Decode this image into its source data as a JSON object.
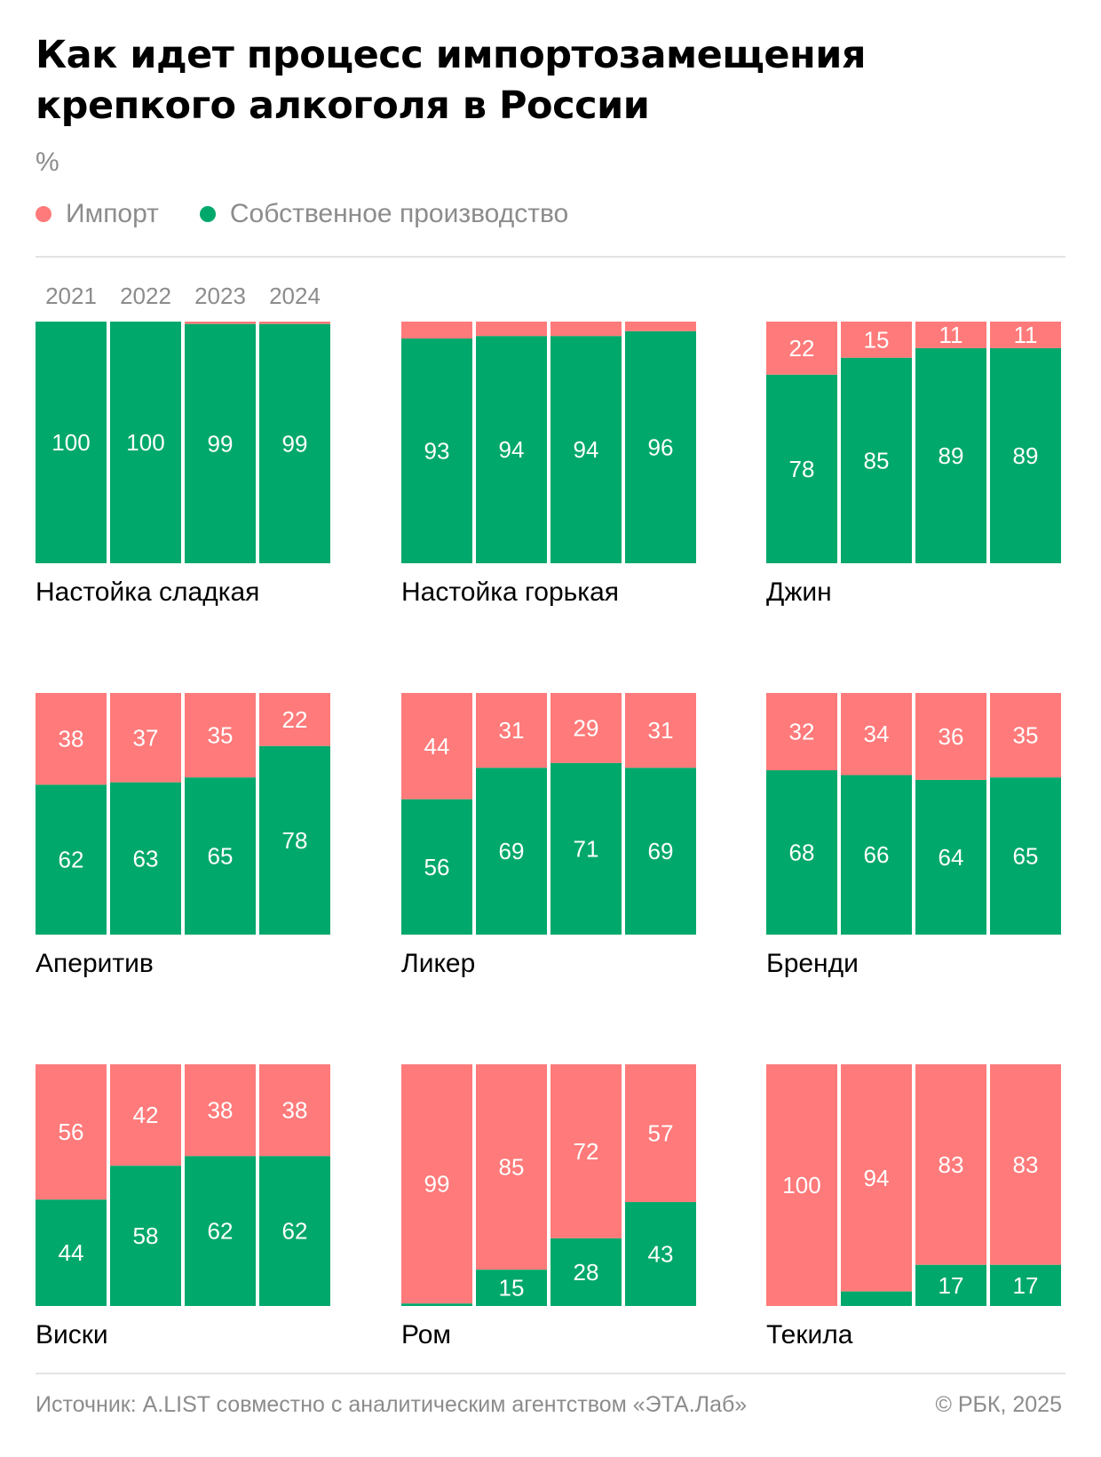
{
  "title": "Как идет процесс импортозамещения крепкого алкоголя в России",
  "unit": "%",
  "legend": [
    {
      "label": "Импорт",
      "color": "#ff7a7a"
    },
    {
      "label": "Собственное производство",
      "color": "#00a86b"
    }
  ],
  "years": [
    "2021",
    "2022",
    "2023",
    "2024"
  ],
  "source": "Источник: A.LIST совместно с аналитическим агентством «ЭТА.Лаб»",
  "copyright": "© РБК, 2025",
  "chart_data": {
    "type": "bar",
    "stacked": true,
    "normalized_percent": true,
    "categories": [
      "2021",
      "2022",
      "2023",
      "2024"
    ],
    "colors": {
      "import": "#ff7a7a",
      "own": "#00a86b"
    },
    "panels": [
      {
        "name": "Настойка сладкая",
        "import": [
          0,
          0,
          1,
          1
        ],
        "own": [
          100,
          100,
          99,
          99
        ],
        "import_labels": [
          "",
          "",
          "",
          ""
        ],
        "own_labels": [
          "100",
          "100",
          "99",
          "99"
        ]
      },
      {
        "name": "Настойка горькая",
        "import": [
          7,
          6,
          6,
          4
        ],
        "own": [
          93,
          94,
          94,
          96
        ],
        "import_labels": [
          "",
          "",
          "",
          ""
        ],
        "own_labels": [
          "93",
          "94",
          "94",
          "96"
        ]
      },
      {
        "name": "Джин",
        "import": [
          22,
          15,
          11,
          11
        ],
        "own": [
          78,
          85,
          89,
          89
        ],
        "import_labels": [
          "22",
          "15",
          "11",
          "11"
        ],
        "own_labels": [
          "78",
          "85",
          "89",
          "89"
        ]
      },
      {
        "name": "Аперитив",
        "import": [
          38,
          37,
          35,
          22
        ],
        "own": [
          62,
          63,
          65,
          78
        ],
        "import_labels": [
          "38",
          "37",
          "35",
          "22"
        ],
        "own_labels": [
          "62",
          "63",
          "65",
          "78"
        ]
      },
      {
        "name": "Ликер",
        "import": [
          44,
          31,
          29,
          31
        ],
        "own": [
          56,
          69,
          71,
          69
        ],
        "import_labels": [
          "44",
          "31",
          "29",
          "31"
        ],
        "own_labels": [
          "56",
          "69",
          "71",
          "69"
        ]
      },
      {
        "name": "Бренди",
        "import": [
          32,
          34,
          36,
          35
        ],
        "own": [
          68,
          66,
          64,
          65
        ],
        "import_labels": [
          "32",
          "34",
          "36",
          "35"
        ],
        "own_labels": [
          "68",
          "66",
          "64",
          "65"
        ]
      },
      {
        "name": "Виски",
        "import": [
          56,
          42,
          38,
          38
        ],
        "own": [
          44,
          58,
          62,
          62
        ],
        "import_labels": [
          "56",
          "42",
          "38",
          "38"
        ],
        "own_labels": [
          "44",
          "58",
          "62",
          "62"
        ]
      },
      {
        "name": "Ром",
        "import": [
          99,
          85,
          72,
          57
        ],
        "own": [
          1,
          15,
          28,
          43
        ],
        "import_labels": [
          "99",
          "85",
          "72",
          "57"
        ],
        "own_labels": [
          "",
          "15",
          "28",
          "43"
        ]
      },
      {
        "name": "Текила",
        "import": [
          100,
          94,
          83,
          83
        ],
        "own": [
          0,
          6,
          17,
          17
        ],
        "import_labels": [
          "100",
          "94",
          "83",
          "83"
        ],
        "own_labels": [
          "",
          "",
          "17",
          "17"
        ]
      }
    ]
  }
}
